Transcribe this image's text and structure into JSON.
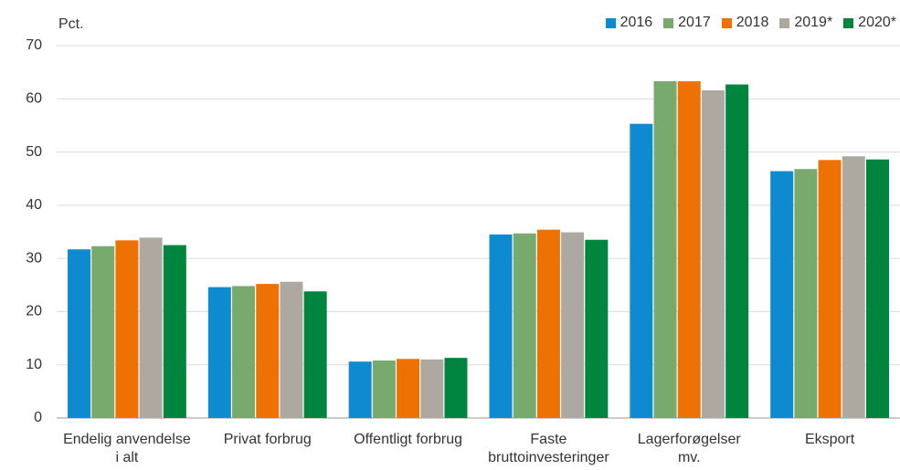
{
  "chart_data": {
    "type": "bar",
    "y_label": "Pct.",
    "categories": [
      "Endelig anvendelse i alt",
      "Privat forbrug",
      "Offentligt forbrug",
      "Faste bruttoinvesteringer",
      "Lagerforøgelser mv.",
      "Eksport"
    ],
    "series": [
      {
        "name": "2016",
        "color": "#0e8ad0",
        "values": [
          31.7,
          24.6,
          10.6,
          34.5,
          55.3,
          46.4
        ]
      },
      {
        "name": "2017",
        "color": "#78aa6e",
        "values": [
          32.3,
          24.8,
          10.8,
          34.7,
          63.3,
          46.8
        ]
      },
      {
        "name": "2018",
        "color": "#ee7203",
        "values": [
          33.4,
          25.2,
          11.1,
          35.4,
          63.3,
          48.5
        ]
      },
      {
        "name": "2019*",
        "color": "#ada9a0",
        "values": [
          33.9,
          25.6,
          11.0,
          34.9,
          61.6,
          49.2
        ]
      },
      {
        "name": "2020*",
        "color": "#00853e",
        "values": [
          32.5,
          23.8,
          11.3,
          33.5,
          62.7,
          48.6
        ]
      }
    ],
    "ylim": [
      0,
      70
    ],
    "yticks": [
      0,
      10,
      20,
      30,
      40,
      50,
      60,
      70
    ],
    "grid": true,
    "legend": "top-right"
  }
}
